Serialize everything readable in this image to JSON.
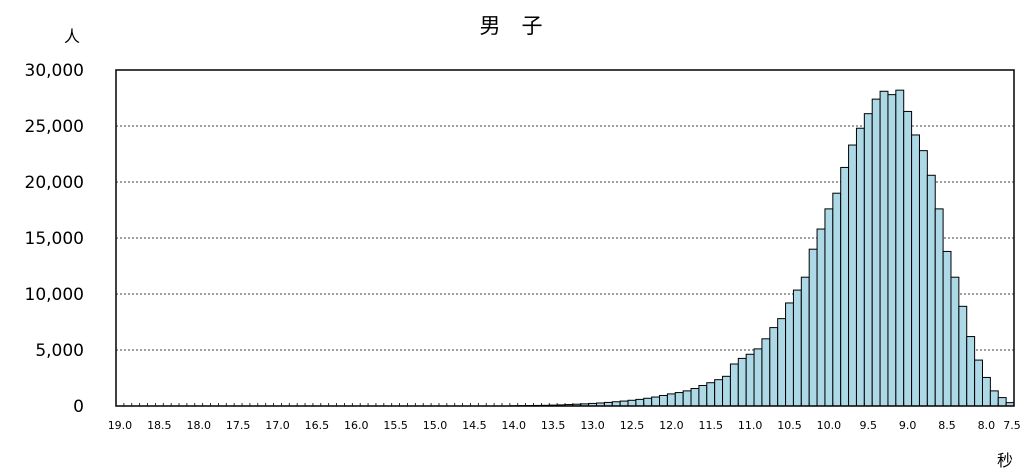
{
  "chart_data": {
    "type": "bar",
    "title": "男　子",
    "ylabel": "人",
    "xlabel": "秒",
    "ylim": [
      0,
      30000
    ],
    "yticks": [
      "0",
      "5,000",
      "10,000",
      "15,000",
      "20,000",
      "25,000",
      "30,000"
    ],
    "ytick_values": [
      0,
      5000,
      10000,
      15000,
      20000,
      25000,
      30000
    ],
    "xticks": [
      "19.0",
      "18.5",
      "18.0",
      "17.5",
      "17.0",
      "16.5",
      "16.0",
      "15.5",
      "15.0",
      "14.5",
      "14.0",
      "13.5",
      "13.0",
      "12.5",
      "12.0",
      "11.5",
      "11.0",
      "10.5",
      "10.0",
      "9.5",
      "9.0",
      "8.5",
      "8.0",
      "7.5"
    ],
    "x_start": 19.0,
    "x_step": -0.1,
    "grid": true,
    "bar_color": "#add8e6",
    "values": [
      0,
      0,
      0,
      0,
      0,
      0,
      0,
      0,
      0,
      0,
      0,
      0,
      0,
      0,
      0,
      0,
      0,
      0,
      0,
      0,
      0,
      0,
      0,
      0,
      0,
      0,
      0,
      0,
      0,
      0,
      0,
      0,
      0,
      0,
      0,
      0,
      0,
      0,
      0,
      0,
      0,
      0,
      0,
      0,
      0,
      0,
      0,
      0,
      0,
      0,
      20,
      30,
      40,
      50,
      60,
      80,
      100,
      130,
      160,
      190,
      230,
      270,
      320,
      380,
      440,
      510,
      590,
      690,
      800,
      940,
      1080,
      1200,
      1350,
      1560,
      1830,
      2080,
      2350,
      2650,
      3750,
      4250,
      4620,
      5100,
      6000,
      7000,
      7800,
      9200,
      10350,
      11500,
      14000,
      15800,
      17600,
      19000,
      21300,
      23300,
      24800,
      26100,
      27400,
      28100,
      27800,
      28200,
      26300,
      24200,
      22800,
      20600,
      17600,
      13800,
      11500,
      8900,
      6200,
      4100,
      2550,
      1350,
      750,
      300
    ]
  }
}
